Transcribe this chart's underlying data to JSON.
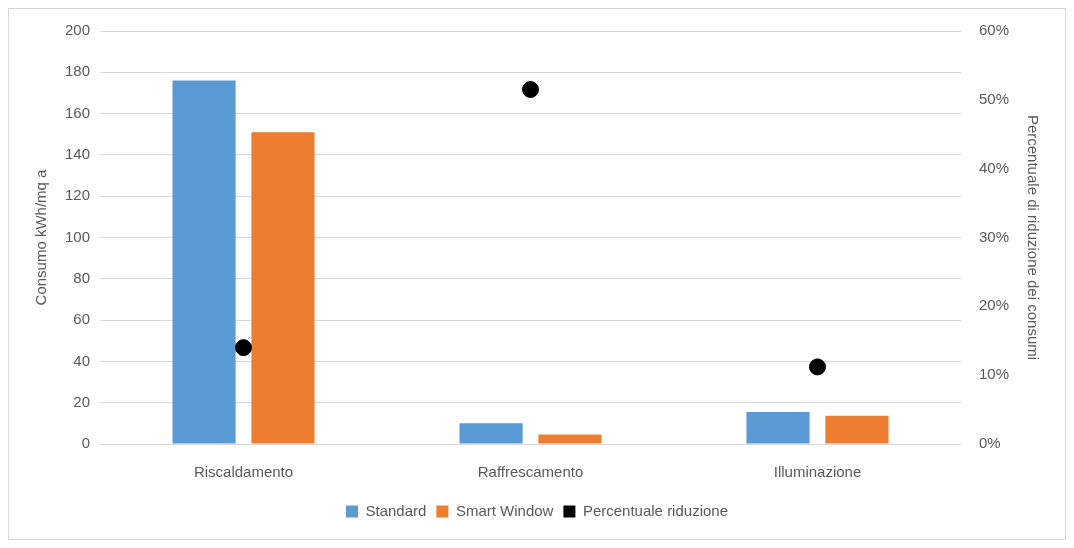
{
  "chart_data": {
    "type": "bar",
    "categories": [
      "Riscaldamento",
      "Raffrescamento",
      "Illuminazione"
    ],
    "series": [
      {
        "name": "Standard",
        "color": "#5b9bd5",
        "values": [
          176,
          10,
          15.5
        ]
      },
      {
        "name": "Smart Window",
        "color": "#ed7d31",
        "values": [
          151,
          4.6,
          13.7
        ]
      },
      {
        "name": "Percentuale riduzione",
        "type": "scatter",
        "axis": "y2",
        "color": "#000000",
        "values": [
          14,
          51.5,
          11.2
        ]
      }
    ],
    "ylabel": "Consumo kWh/mq a",
    "y2label": "Percentuale di riduzione dei consumi",
    "ylim": [
      0,
      200
    ],
    "yticks": [
      0,
      20,
      40,
      60,
      80,
      100,
      120,
      140,
      160,
      180,
      200
    ],
    "y2lim": [
      0,
      60
    ],
    "y2ticks": [
      {
        "value": 0,
        "label": "0%"
      },
      {
        "value": 10,
        "label": "10%"
      },
      {
        "value": 20,
        "label": "20%"
      },
      {
        "value": 30,
        "label": "30%"
      },
      {
        "value": 40,
        "label": "40%"
      },
      {
        "value": 50,
        "label": "50%"
      },
      {
        "value": 60,
        "label": "60%"
      }
    ],
    "grid": "y",
    "legend": "bottom",
    "marker": "circle"
  }
}
